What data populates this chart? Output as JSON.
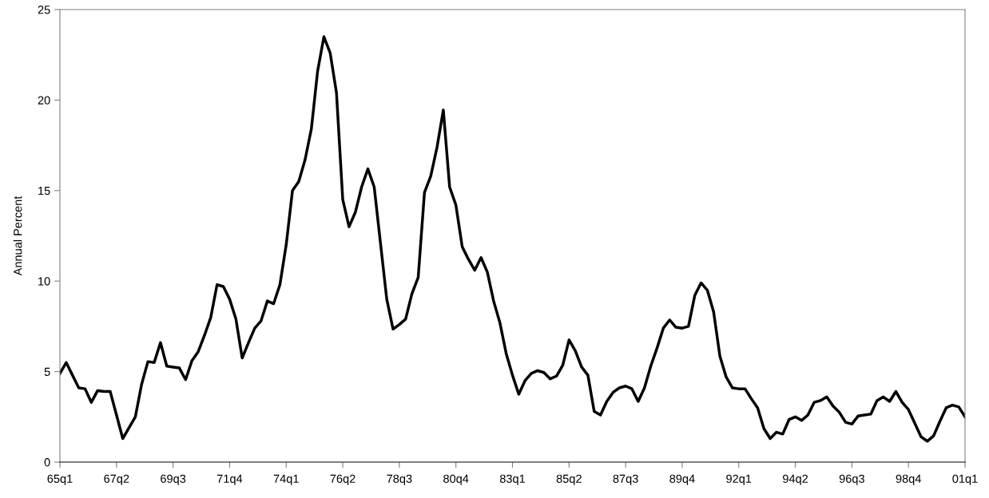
{
  "chart_data": {
    "type": "line",
    "ylabel": "Annual Percent",
    "categories": [
      "65q1",
      null,
      null,
      null,
      null,
      null,
      null,
      null,
      null,
      "67q2",
      null,
      null,
      null,
      null,
      null,
      null,
      null,
      null,
      "69q3",
      null,
      null,
      null,
      null,
      null,
      null,
      null,
      null,
      "71q4",
      null,
      null,
      null,
      null,
      null,
      null,
      null,
      null,
      "74q1",
      null,
      null,
      null,
      null,
      null,
      null,
      null,
      null,
      "76q2",
      null,
      null,
      null,
      null,
      null,
      null,
      null,
      null,
      "78q3",
      null,
      null,
      null,
      null,
      null,
      null,
      null,
      null,
      "80q4",
      null,
      null,
      null,
      null,
      null,
      null,
      null,
      null,
      "83q1",
      null,
      null,
      null,
      null,
      null,
      null,
      null,
      null,
      "85q2",
      null,
      null,
      null,
      null,
      null,
      null,
      null,
      null,
      "87q3",
      null,
      null,
      null,
      null,
      null,
      null,
      null,
      null,
      "89q4",
      null,
      null,
      null,
      null,
      null,
      null,
      null,
      null,
      "92q1",
      null,
      null,
      null,
      null,
      null,
      null,
      null,
      null,
      "94q2",
      null,
      null,
      null,
      null,
      null,
      null,
      null,
      null,
      "96q3",
      null,
      null,
      null,
      null,
      null,
      null,
      null,
      null,
      "98q4",
      null,
      null,
      null,
      null,
      null,
      null,
      null,
      null,
      "01q1"
    ],
    "series": [
      {
        "color": "#000000",
        "values": [
          4.9,
          5.5,
          4.8,
          4.1,
          4.05,
          3.3,
          3.95,
          3.9,
          3.9,
          2.6,
          1.3,
          1.9,
          2.5,
          4.3,
          5.55,
          5.5,
          6.6,
          5.3,
          5.25,
          5.2,
          4.55,
          5.6,
          6.1,
          7.0,
          8.0,
          9.8,
          9.7,
          9.0,
          7.9,
          5.75,
          6.6,
          7.4,
          7.8,
          8.9,
          8.75,
          9.8,
          12.0,
          15.0,
          15.5,
          16.7,
          18.4,
          21.6,
          23.5,
          22.6,
          20.4,
          14.5,
          13.0,
          13.8,
          15.2,
          16.2,
          15.2,
          12.1,
          9.0,
          7.35,
          7.6,
          7.9,
          9.3,
          10.2,
          14.9,
          15.8,
          17.4,
          19.45,
          15.2,
          14.2,
          11.9,
          11.2,
          10.6,
          11.3,
          10.5,
          8.9,
          7.7,
          6.0,
          4.8,
          3.75,
          4.5,
          4.9,
          5.05,
          4.95,
          4.6,
          4.75,
          5.35,
          6.75,
          6.15,
          5.25,
          4.8,
          2.8,
          2.6,
          3.35,
          3.85,
          4.1,
          4.2,
          4.05,
          3.35,
          4.1,
          5.3,
          6.3,
          7.4,
          7.85,
          7.45,
          7.4,
          7.5,
          9.2,
          9.9,
          9.5,
          8.3,
          5.85,
          4.7,
          4.1,
          4.05,
          4.05,
          3.5,
          3.0,
          1.85,
          1.3,
          1.65,
          1.55,
          2.35,
          2.5,
          2.3,
          2.6,
          3.3,
          3.4,
          3.6,
          3.1,
          2.75,
          2.2,
          2.1,
          2.55,
          2.6,
          2.65,
          3.4,
          3.6,
          3.35,
          3.9,
          3.3,
          2.9,
          2.15,
          1.4,
          1.15,
          1.45,
          2.25,
          3.0,
          3.15,
          3.05,
          2.5
        ]
      }
    ],
    "ylim": [
      0,
      25
    ],
    "yticks": [
      0,
      5,
      10,
      15,
      20,
      25
    ],
    "grid": false,
    "marker": "none",
    "line_style": "solid"
  }
}
